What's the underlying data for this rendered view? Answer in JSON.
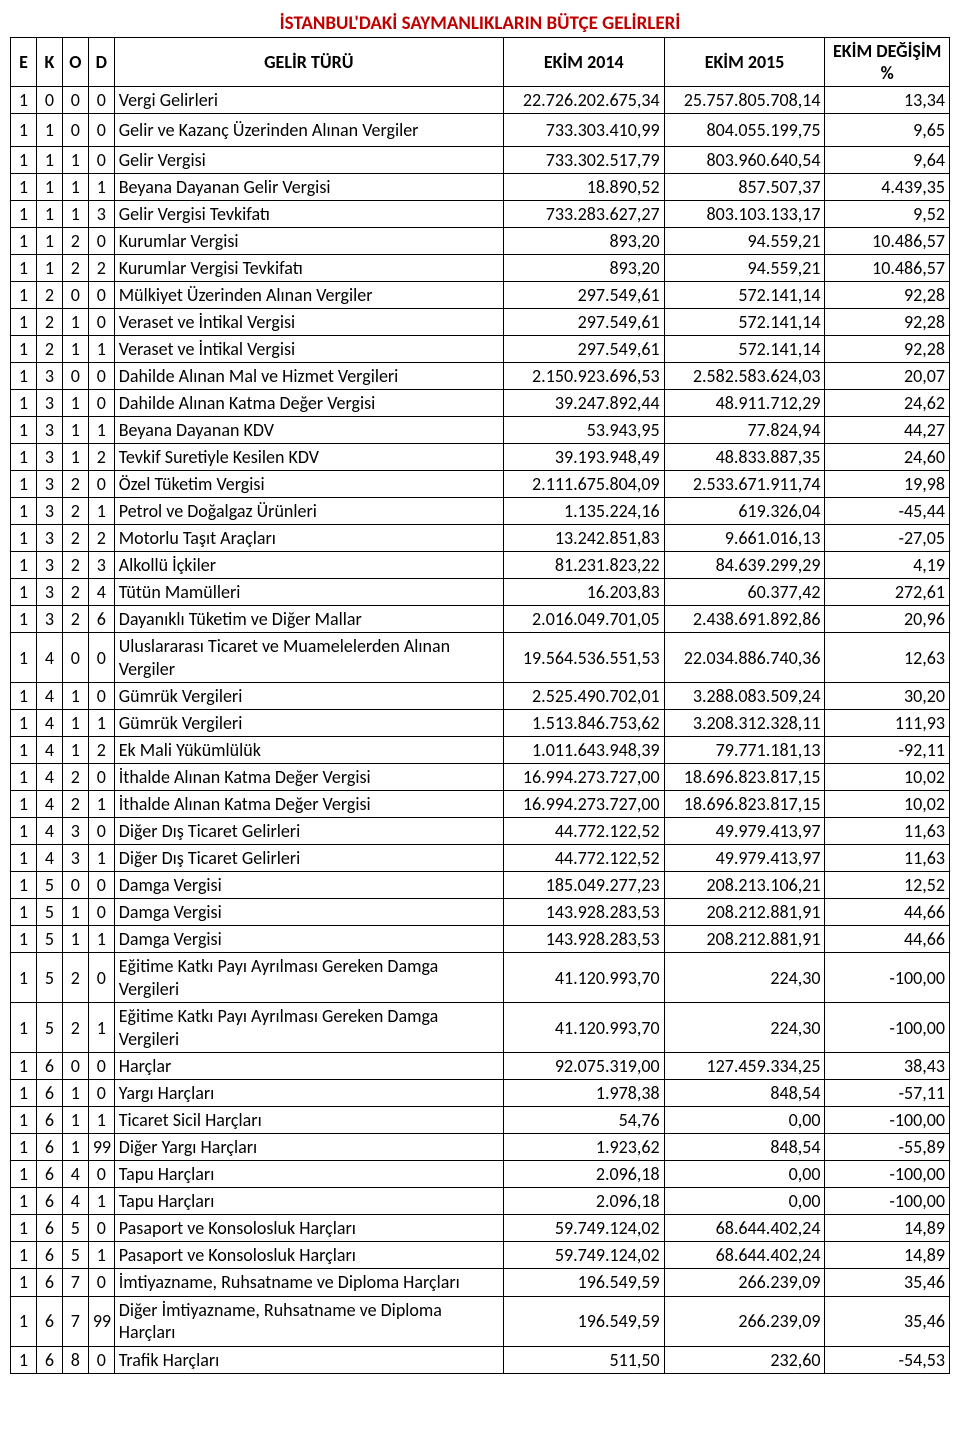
{
  "title": "İSTANBUL'DAKİ SAYMANLIKLARIN BÜTÇE GELİRLERİ",
  "columns": {
    "e": "E",
    "k": "K",
    "o": "O",
    "d": "D",
    "name": "GELİR TÜRÜ",
    "oct2014": "EKİM 2014",
    "oct2015": "EKİM 2015",
    "pct": "EKİM DEĞİŞİM %"
  },
  "rows": [
    {
      "e": "1",
      "k": "0",
      "o": "0",
      "d": "0",
      "name": "Vergi Gelirleri",
      "v14": "22.726.202.675,34",
      "v15": "25.757.805.708,14",
      "pct": "13,34"
    },
    {
      "e": "1",
      "k": "1",
      "o": "0",
      "d": "0",
      "name": "Gelir ve  Kazanç Üzerinden Alınan Vergiler",
      "v14": "733.303.410,99",
      "v15": "804.055.199,75",
      "pct": "9,65",
      "spaced": true
    },
    {
      "e": "1",
      "k": "1",
      "o": "1",
      "d": "0",
      "name": "Gelir Vergisi",
      "v14": "733.302.517,79",
      "v15": "803.960.640,54",
      "pct": "9,64"
    },
    {
      "e": "1",
      "k": "1",
      "o": "1",
      "d": "1",
      "name": "Beyana Dayanan Gelir Vergisi",
      "v14": "18.890,52",
      "v15": "857.507,37",
      "pct": "4.439,35"
    },
    {
      "e": "1",
      "k": "1",
      "o": "1",
      "d": "3",
      "name": "Gelir Vergisi Tevkifatı",
      "v14": "733.283.627,27",
      "v15": "803.103.133,17",
      "pct": "9,52"
    },
    {
      "e": "1",
      "k": "1",
      "o": "2",
      "d": "0",
      "name": "Kurumlar Vergisi",
      "v14": "893,20",
      "v15": "94.559,21",
      "pct": "10.486,57"
    },
    {
      "e": "1",
      "k": "1",
      "o": "2",
      "d": "2",
      "name": "Kurumlar Vergisi Tevkifatı",
      "v14": "893,20",
      "v15": "94.559,21",
      "pct": "10.486,57"
    },
    {
      "e": "1",
      "k": "2",
      "o": "0",
      "d": "0",
      "name": "Mülkiyet Üzerinden Alınan Vergiler",
      "v14": "297.549,61",
      "v15": "572.141,14",
      "pct": "92,28"
    },
    {
      "e": "1",
      "k": "2",
      "o": "1",
      "d": "0",
      "name": "Veraset ve İntikal Vergisi",
      "v14": "297.549,61",
      "v15": "572.141,14",
      "pct": "92,28"
    },
    {
      "e": "1",
      "k": "2",
      "o": "1",
      "d": "1",
      "name": "Veraset ve İntikal Vergisi",
      "v14": "297.549,61",
      "v15": "572.141,14",
      "pct": "92,28"
    },
    {
      "e": "1",
      "k": "3",
      "o": "0",
      "d": "0",
      "name": "Dahilde Alınan Mal ve Hizmet Vergileri",
      "v14": "2.150.923.696,53",
      "v15": "2.582.583.624,03",
      "pct": "20,07"
    },
    {
      "e": "1",
      "k": "3",
      "o": "1",
      "d": "0",
      "name": "Dahilde Alınan Katma Değer Vergisi",
      "v14": "39.247.892,44",
      "v15": "48.911.712,29",
      "pct": "24,62"
    },
    {
      "e": "1",
      "k": "3",
      "o": "1",
      "d": "1",
      "name": "Beyana Dayanan KDV",
      "v14": "53.943,95",
      "v15": "77.824,94",
      "pct": "44,27"
    },
    {
      "e": "1",
      "k": "3",
      "o": "1",
      "d": "2",
      "name": "Tevkif  Suretiyle Kesilen KDV",
      "v14": "39.193.948,49",
      "v15": "48.833.887,35",
      "pct": "24,60"
    },
    {
      "e": "1",
      "k": "3",
      "o": "2",
      "d": "0",
      "name": "Özel Tüketim Vergisi",
      "v14": "2.111.675.804,09",
      "v15": "2.533.671.911,74",
      "pct": "19,98"
    },
    {
      "e": "1",
      "k": "3",
      "o": "2",
      "d": "1",
      "name": "Petrol ve Doğalgaz Ürünleri",
      "v14": "1.135.224,16",
      "v15": "619.326,04",
      "pct": "-45,44"
    },
    {
      "e": "1",
      "k": "3",
      "o": "2",
      "d": "2",
      "name": "Motorlu Taşıt Araçları",
      "v14": "13.242.851,83",
      "v15": "9.661.016,13",
      "pct": "-27,05"
    },
    {
      "e": "1",
      "k": "3",
      "o": "2",
      "d": "3",
      "name": "Alkollü İçkiler",
      "v14": "81.231.823,22",
      "v15": "84.639.299,29",
      "pct": "4,19"
    },
    {
      "e": "1",
      "k": "3",
      "o": "2",
      "d": "4",
      "name": "Tütün Mamülleri",
      "v14": "16.203,83",
      "v15": "60.377,42",
      "pct": "272,61"
    },
    {
      "e": "1",
      "k": "3",
      "o": "2",
      "d": "6",
      "name": "Dayanıklı Tüketim ve Diğer Mallar",
      "v14": "2.016.049.701,05",
      "v15": "2.438.691.892,86",
      "pct": "20,96"
    },
    {
      "e": "1",
      "k": "4",
      "o": "0",
      "d": "0",
      "name": "Uluslararası Ticaret ve Muamelelerden Alınan Vergiler",
      "v14": "19.564.536.551,53",
      "v15": "22.034.886.740,36",
      "pct": "12,63",
      "tall": true
    },
    {
      "e": "1",
      "k": "4",
      "o": "1",
      "d": "0",
      "name": "Gümrük Vergileri",
      "v14": "2.525.490.702,01",
      "v15": "3.288.083.509,24",
      "pct": "30,20"
    },
    {
      "e": "1",
      "k": "4",
      "o": "1",
      "d": "1",
      "name": "Gümrük Vergileri",
      "v14": "1.513.846.753,62",
      "v15": "3.208.312.328,11",
      "pct": "111,93"
    },
    {
      "e": "1",
      "k": "4",
      "o": "1",
      "d": "2",
      "name": "Ek Mali Yükümlülük",
      "v14": "1.011.643.948,39",
      "v15": "79.771.181,13",
      "pct": "-92,11"
    },
    {
      "e": "1",
      "k": "4",
      "o": "2",
      "d": "0",
      "name": "İthalde Alınan Katma Değer Vergisi",
      "v14": "16.994.273.727,00",
      "v15": "18.696.823.817,15",
      "pct": "10,02"
    },
    {
      "e": "1",
      "k": "4",
      "o": "2",
      "d": "1",
      "name": "İthalde Alınan Katma Değer Vergisi",
      "v14": "16.994.273.727,00",
      "v15": "18.696.823.817,15",
      "pct": "10,02"
    },
    {
      "e": "1",
      "k": "4",
      "o": "3",
      "d": "0",
      "name": "Diğer Dış Ticaret Gelirleri",
      "v14": "44.772.122,52",
      "v15": "49.979.413,97",
      "pct": "11,63"
    },
    {
      "e": "1",
      "k": "4",
      "o": "3",
      "d": "1",
      "name": "Diğer Dış Ticaret Gelirleri",
      "v14": "44.772.122,52",
      "v15": "49.979.413,97",
      "pct": "11,63"
    },
    {
      "e": "1",
      "k": "5",
      "o": "0",
      "d": "0",
      "name": "Damga Vergisi",
      "v14": "185.049.277,23",
      "v15": "208.213.106,21",
      "pct": "12,52"
    },
    {
      "e": "1",
      "k": "5",
      "o": "1",
      "d": "0",
      "name": "Damga Vergisi",
      "v14": "143.928.283,53",
      "v15": "208.212.881,91",
      "pct": "44,66"
    },
    {
      "e": "1",
      "k": "5",
      "o": "1",
      "d": "1",
      "name": "Damga Vergisi",
      "v14": "143.928.283,53",
      "v15": "208.212.881,91",
      "pct": "44,66"
    },
    {
      "e": "1",
      "k": "5",
      "o": "2",
      "d": "0",
      "name": "Eğitime Katkı Payı Ayrılması Gereken Damga Vergileri",
      "v14": "41.120.993,70",
      "v15": "224,30",
      "pct": "-100,00",
      "tall": true
    },
    {
      "e": "1",
      "k": "5",
      "o": "2",
      "d": "1",
      "name": "Eğitime Katkı Payı Ayrılması Gereken Damga Vergileri",
      "v14": "41.120.993,70",
      "v15": "224,30",
      "pct": "-100,00",
      "tall": true
    },
    {
      "e": "1",
      "k": "6",
      "o": "0",
      "d": "0",
      "name": "Harçlar",
      "v14": "92.075.319,00",
      "v15": "127.459.334,25",
      "pct": "38,43"
    },
    {
      "e": "1",
      "k": "6",
      "o": "1",
      "d": "0",
      "name": "Yargı Harçları",
      "v14": "1.978,38",
      "v15": "848,54",
      "pct": "-57,11"
    },
    {
      "e": "1",
      "k": "6",
      "o": "1",
      "d": "1",
      "name": "Ticaret Sicil Harçları",
      "v14": "54,76",
      "v15": "0,00",
      "pct": "-100,00"
    },
    {
      "e": "1",
      "k": "6",
      "o": "1",
      "d": "99",
      "name": "Diğer Yargı Harçları",
      "v14": "1.923,62",
      "v15": "848,54",
      "pct": "-55,89"
    },
    {
      "e": "1",
      "k": "6",
      "o": "4",
      "d": "0",
      "name": "Tapu Harçları",
      "v14": "2.096,18",
      "v15": "0,00",
      "pct": "-100,00"
    },
    {
      "e": "1",
      "k": "6",
      "o": "4",
      "d": "1",
      "name": "Tapu Harçları",
      "v14": "2.096,18",
      "v15": "0,00",
      "pct": "-100,00"
    },
    {
      "e": "1",
      "k": "6",
      "o": "5",
      "d": "0",
      "name": "Pasaport ve Konsolosluk Harçları",
      "v14": "59.749.124,02",
      "v15": "68.644.402,24",
      "pct": "14,89"
    },
    {
      "e": "1",
      "k": "6",
      "o": "5",
      "d": "1",
      "name": "Pasaport ve Konsolosluk Harçları",
      "v14": "59.749.124,02",
      "v15": "68.644.402,24",
      "pct": "14,89"
    },
    {
      "e": "1",
      "k": "6",
      "o": "7",
      "d": "0",
      "name": "İmtiyazname, Ruhsatname ve Diploma Harçları",
      "v14": "196.549,59",
      "v15": "266.239,09",
      "pct": "35,46",
      "tall": true
    },
    {
      "e": "1",
      "k": "6",
      "o": "7",
      "d": "99",
      "name": "Diğer İmtiyazname, Ruhsatname ve Diploma Harçları",
      "v14": "196.549,59",
      "v15": "266.239,09",
      "pct": "35,46",
      "tall": true
    },
    {
      "e": "1",
      "k": "6",
      "o": "8",
      "d": "0",
      "name": "Trafik Harçları",
      "v14": "511,50",
      "v15": "232,60",
      "pct": "-54,53"
    }
  ]
}
